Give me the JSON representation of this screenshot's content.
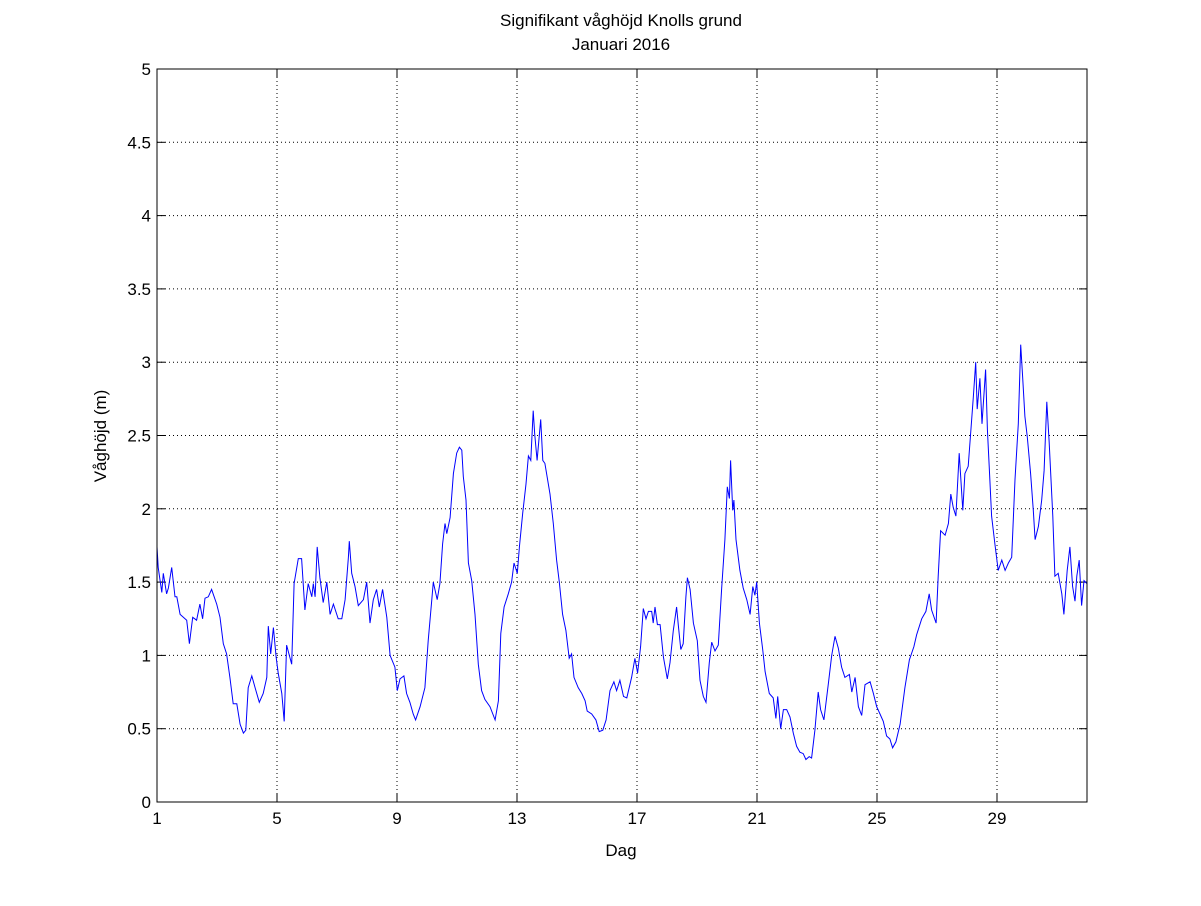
{
  "chart_data": {
    "type": "line",
    "title": "Signifikant våghöjd Knolls grund",
    "subtitle": "Januari 2016",
    "xlabel": "Dag",
    "ylabel": "Våghöjd (m)",
    "xlim": [
      1,
      32
    ],
    "ylim": [
      0,
      5
    ],
    "xticks": [
      1,
      5,
      9,
      13,
      17,
      21,
      25,
      29
    ],
    "yticks": [
      0,
      0.5,
      1,
      1.5,
      2,
      2.5,
      3,
      3.5,
      4,
      4.5,
      5
    ],
    "grid": true,
    "grid_style": "dotted",
    "legend": "none",
    "line_color": "#0000ff",
    "series": [
      {
        "points": [
          [
            1.0,
            1.74
          ],
          [
            1.04,
            1.6
          ],
          [
            1.16,
            1.43
          ],
          [
            1.21,
            1.56
          ],
          [
            1.32,
            1.42
          ],
          [
            1.38,
            1.46
          ],
          [
            1.49,
            1.6
          ],
          [
            1.6,
            1.4
          ],
          [
            1.66,
            1.4
          ],
          [
            1.77,
            1.28
          ],
          [
            1.99,
            1.24
          ],
          [
            2.08,
            1.08
          ],
          [
            2.19,
            1.26
          ],
          [
            2.32,
            1.24
          ],
          [
            2.43,
            1.35
          ],
          [
            2.52,
            1.25
          ],
          [
            2.6,
            1.39
          ],
          [
            2.71,
            1.4
          ],
          [
            2.82,
            1.45
          ],
          [
            2.99,
            1.35
          ],
          [
            3.1,
            1.26
          ],
          [
            3.21,
            1.08
          ],
          [
            3.32,
            1.01
          ],
          [
            3.43,
            0.85
          ],
          [
            3.54,
            0.67
          ],
          [
            3.66,
            0.67
          ],
          [
            3.77,
            0.53
          ],
          [
            3.88,
            0.47
          ],
          [
            3.96,
            0.49
          ],
          [
            4.04,
            0.78
          ],
          [
            4.16,
            0.86
          ],
          [
            4.27,
            0.78
          ],
          [
            4.41,
            0.68
          ],
          [
            4.54,
            0.74
          ],
          [
            4.66,
            0.85
          ],
          [
            4.71,
            1.2
          ],
          [
            4.79,
            1.01
          ],
          [
            4.88,
            1.19
          ],
          [
            4.97,
            0.99
          ],
          [
            5.04,
            0.88
          ],
          [
            5.16,
            0.74
          ],
          [
            5.24,
            0.55
          ],
          [
            5.32,
            1.07
          ],
          [
            5.49,
            0.94
          ],
          [
            5.57,
            1.49
          ],
          [
            5.71,
            1.66
          ],
          [
            5.82,
            1.66
          ],
          [
            5.93,
            1.31
          ],
          [
            6.04,
            1.49
          ],
          [
            6.16,
            1.4
          ],
          [
            6.21,
            1.49
          ],
          [
            6.27,
            1.4
          ],
          [
            6.34,
            1.74
          ],
          [
            6.43,
            1.53
          ],
          [
            6.54,
            1.36
          ],
          [
            6.66,
            1.5
          ],
          [
            6.77,
            1.28
          ],
          [
            6.88,
            1.35
          ],
          [
            7.04,
            1.25
          ],
          [
            7.16,
            1.25
          ],
          [
            7.27,
            1.38
          ],
          [
            7.38,
            1.67
          ],
          [
            7.41,
            1.78
          ],
          [
            7.49,
            1.56
          ],
          [
            7.6,
            1.47
          ],
          [
            7.71,
            1.34
          ],
          [
            7.88,
            1.38
          ],
          [
            7.99,
            1.5
          ],
          [
            8.1,
            1.22
          ],
          [
            8.21,
            1.38
          ],
          [
            8.32,
            1.45
          ],
          [
            8.41,
            1.33
          ],
          [
            8.52,
            1.45
          ],
          [
            8.66,
            1.26
          ],
          [
            8.77,
            1.0
          ],
          [
            8.93,
            0.92
          ],
          [
            9.01,
            0.76
          ],
          [
            9.1,
            0.84
          ],
          [
            9.23,
            0.86
          ],
          [
            9.32,
            0.74
          ],
          [
            9.43,
            0.68
          ],
          [
            9.54,
            0.6
          ],
          [
            9.62,
            0.56
          ],
          [
            9.77,
            0.65
          ],
          [
            9.93,
            0.78
          ],
          [
            10.04,
            1.1
          ],
          [
            10.16,
            1.38
          ],
          [
            10.21,
            1.5
          ],
          [
            10.34,
            1.38
          ],
          [
            10.43,
            1.49
          ],
          [
            10.52,
            1.76
          ],
          [
            10.6,
            1.9
          ],
          [
            10.66,
            1.83
          ],
          [
            10.77,
            1.94
          ],
          [
            10.88,
            2.24
          ],
          [
            10.99,
            2.38
          ],
          [
            11.08,
            2.42
          ],
          [
            11.16,
            2.4
          ],
          [
            11.21,
            2.22
          ],
          [
            11.3,
            2.06
          ],
          [
            11.38,
            1.63
          ],
          [
            11.49,
            1.51
          ],
          [
            11.6,
            1.28
          ],
          [
            11.71,
            0.94
          ],
          [
            11.82,
            0.76
          ],
          [
            11.93,
            0.7
          ],
          [
            12.1,
            0.65
          ],
          [
            12.27,
            0.56
          ],
          [
            12.38,
            0.69
          ],
          [
            12.46,
            1.15
          ],
          [
            12.57,
            1.33
          ],
          [
            12.71,
            1.42
          ],
          [
            12.82,
            1.5
          ],
          [
            12.9,
            1.63
          ],
          [
            13.01,
            1.56
          ],
          [
            13.08,
            1.74
          ],
          [
            13.19,
            1.97
          ],
          [
            13.3,
            2.17
          ],
          [
            13.38,
            2.36
          ],
          [
            13.46,
            2.33
          ],
          [
            13.54,
            2.67
          ],
          [
            13.59,
            2.51
          ],
          [
            13.67,
            2.33
          ],
          [
            13.79,
            2.61
          ],
          [
            13.86,
            2.33
          ],
          [
            13.93,
            2.31
          ],
          [
            14.1,
            2.1
          ],
          [
            14.21,
            1.9
          ],
          [
            14.32,
            1.65
          ],
          [
            14.41,
            1.5
          ],
          [
            14.52,
            1.28
          ],
          [
            14.63,
            1.17
          ],
          [
            14.74,
            0.98
          ],
          [
            14.82,
            1.01
          ],
          [
            14.9,
            0.85
          ],
          [
            15.04,
            0.78
          ],
          [
            15.16,
            0.74
          ],
          [
            15.27,
            0.69
          ],
          [
            15.34,
            0.62
          ],
          [
            15.49,
            0.6
          ],
          [
            15.63,
            0.56
          ],
          [
            15.74,
            0.48
          ],
          [
            15.86,
            0.49
          ],
          [
            15.97,
            0.56
          ],
          [
            16.1,
            0.76
          ],
          [
            16.23,
            0.82
          ],
          [
            16.32,
            0.76
          ],
          [
            16.43,
            0.83
          ],
          [
            16.55,
            0.72
          ],
          [
            16.66,
            0.71
          ],
          [
            16.82,
            0.85
          ],
          [
            16.93,
            0.98
          ],
          [
            17.02,
            0.88
          ],
          [
            17.12,
            1.06
          ],
          [
            17.21,
            1.32
          ],
          [
            17.3,
            1.25
          ],
          [
            17.38,
            1.3
          ],
          [
            17.49,
            1.3
          ],
          [
            17.54,
            1.22
          ],
          [
            17.6,
            1.33
          ],
          [
            17.68,
            1.21
          ],
          [
            17.77,
            1.21
          ],
          [
            17.88,
            0.99
          ],
          [
            18.01,
            0.84
          ],
          [
            18.1,
            0.95
          ],
          [
            18.21,
            1.17
          ],
          [
            18.32,
            1.33
          ],
          [
            18.38,
            1.2
          ],
          [
            18.46,
            1.04
          ],
          [
            18.54,
            1.08
          ],
          [
            18.63,
            1.4
          ],
          [
            18.68,
            1.53
          ],
          [
            18.77,
            1.45
          ],
          [
            18.88,
            1.22
          ],
          [
            19.01,
            1.1
          ],
          [
            19.1,
            0.83
          ],
          [
            19.21,
            0.72
          ],
          [
            19.3,
            0.68
          ],
          [
            19.41,
            0.95
          ],
          [
            19.49,
            1.09
          ],
          [
            19.6,
            1.03
          ],
          [
            19.71,
            1.07
          ],
          [
            19.82,
            1.45
          ],
          [
            19.93,
            1.79
          ],
          [
            20.01,
            2.15
          ],
          [
            20.08,
            2.07
          ],
          [
            20.12,
            2.33
          ],
          [
            20.19,
            1.99
          ],
          [
            20.23,
            2.06
          ],
          [
            20.3,
            1.79
          ],
          [
            20.43,
            1.58
          ],
          [
            20.54,
            1.46
          ],
          [
            20.66,
            1.38
          ],
          [
            20.77,
            1.28
          ],
          [
            20.86,
            1.47
          ],
          [
            20.93,
            1.41
          ],
          [
            20.99,
            1.5
          ],
          [
            21.08,
            1.22
          ],
          [
            21.19,
            1.04
          ],
          [
            21.27,
            0.89
          ],
          [
            21.41,
            0.74
          ],
          [
            21.54,
            0.71
          ],
          [
            21.63,
            0.57
          ],
          [
            21.69,
            0.72
          ],
          [
            21.79,
            0.5
          ],
          [
            21.88,
            0.63
          ],
          [
            21.99,
            0.63
          ],
          [
            22.1,
            0.58
          ],
          [
            22.21,
            0.47
          ],
          [
            22.32,
            0.38
          ],
          [
            22.43,
            0.34
          ],
          [
            22.54,
            0.33
          ],
          [
            22.63,
            0.29
          ],
          [
            22.74,
            0.31
          ],
          [
            22.82,
            0.3
          ],
          [
            22.93,
            0.49
          ],
          [
            23.04,
            0.75
          ],
          [
            23.12,
            0.63
          ],
          [
            23.23,
            0.56
          ],
          [
            23.38,
            0.81
          ],
          [
            23.49,
            1.0
          ],
          [
            23.6,
            1.13
          ],
          [
            23.71,
            1.05
          ],
          [
            23.82,
            0.92
          ],
          [
            23.93,
            0.85
          ],
          [
            24.08,
            0.87
          ],
          [
            24.16,
            0.75
          ],
          [
            24.27,
            0.85
          ],
          [
            24.38,
            0.65
          ],
          [
            24.49,
            0.59
          ],
          [
            24.6,
            0.8
          ],
          [
            24.77,
            0.82
          ],
          [
            24.88,
            0.74
          ],
          [
            24.99,
            0.65
          ],
          [
            25.1,
            0.6
          ],
          [
            25.21,
            0.55
          ],
          [
            25.32,
            0.45
          ],
          [
            25.43,
            0.43
          ],
          [
            25.52,
            0.37
          ],
          [
            25.63,
            0.41
          ],
          [
            25.77,
            0.53
          ],
          [
            25.93,
            0.78
          ],
          [
            26.08,
            0.97
          ],
          [
            26.23,
            1.06
          ],
          [
            26.32,
            1.14
          ],
          [
            26.49,
            1.25
          ],
          [
            26.63,
            1.3
          ],
          [
            26.74,
            1.42
          ],
          [
            26.82,
            1.31
          ],
          [
            26.97,
            1.22
          ],
          [
            27.04,
            1.54
          ],
          [
            27.12,
            1.85
          ],
          [
            27.27,
            1.82
          ],
          [
            27.38,
            1.9
          ],
          [
            27.46,
            2.1
          ],
          [
            27.54,
            2.01
          ],
          [
            27.63,
            1.95
          ],
          [
            27.74,
            2.38
          ],
          [
            27.86,
            1.99
          ],
          [
            27.93,
            2.24
          ],
          [
            28.04,
            2.29
          ],
          [
            28.12,
            2.51
          ],
          [
            28.21,
            2.76
          ],
          [
            28.29,
            3.0
          ],
          [
            28.34,
            2.68
          ],
          [
            28.43,
            2.89
          ],
          [
            28.5,
            2.58
          ],
          [
            28.62,
            2.95
          ],
          [
            28.68,
            2.54
          ],
          [
            28.74,
            2.29
          ],
          [
            28.82,
            1.95
          ],
          [
            28.93,
            1.76
          ],
          [
            29.04,
            1.58
          ],
          [
            29.16,
            1.65
          ],
          [
            29.27,
            1.58
          ],
          [
            29.38,
            1.63
          ],
          [
            29.49,
            1.67
          ],
          [
            29.6,
            2.2
          ],
          [
            29.71,
            2.58
          ],
          [
            29.79,
            3.12
          ],
          [
            29.86,
            2.88
          ],
          [
            29.93,
            2.63
          ],
          [
            30.01,
            2.49
          ],
          [
            30.12,
            2.24
          ],
          [
            30.21,
            1.99
          ],
          [
            30.27,
            1.79
          ],
          [
            30.38,
            1.88
          ],
          [
            30.49,
            2.06
          ],
          [
            30.57,
            2.26
          ],
          [
            30.66,
            2.73
          ],
          [
            30.74,
            2.45
          ],
          [
            30.86,
            1.95
          ],
          [
            30.93,
            1.54
          ],
          [
            31.04,
            1.56
          ],
          [
            31.16,
            1.42
          ],
          [
            31.23,
            1.28
          ],
          [
            31.34,
            1.58
          ],
          [
            31.43,
            1.74
          ],
          [
            31.52,
            1.47
          ],
          [
            31.6,
            1.37
          ],
          [
            31.66,
            1.54
          ],
          [
            31.74,
            1.65
          ],
          [
            31.82,
            1.34
          ],
          [
            31.9,
            1.51
          ],
          [
            32.0,
            1.49
          ]
        ]
      }
    ]
  }
}
